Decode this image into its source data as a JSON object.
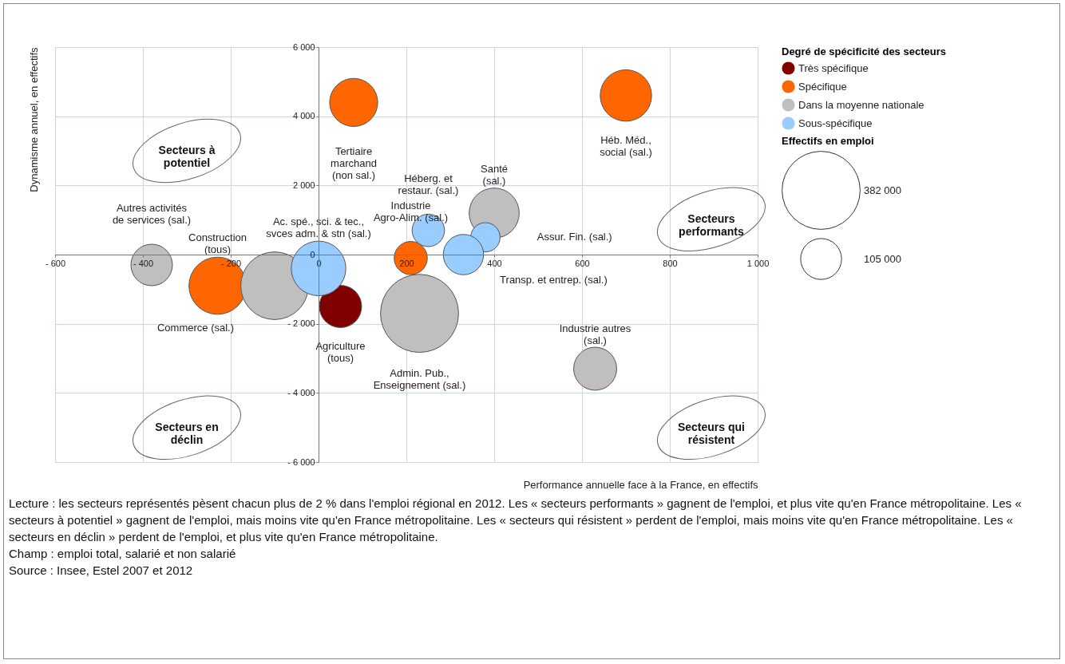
{
  "chart_data": {
    "type": "bubble",
    "xlabel": "Performance annuelle face à la France, en effectifs",
    "ylabel": "Dynamisme annuel, en effectifs",
    "legend_title": "Degré de spécificité des secteurs",
    "series": [
      {
        "name": "Très spécifique",
        "color": "#800000",
        "x": [
          50
        ],
        "values": [
          -1500
        ],
        "sizes": [
          112000
        ]
      },
      {
        "name": "Spécifique",
        "color": "#ff6600",
        "x": [
          -230,
          80,
          210,
          700
        ],
        "values": [
          -900,
          4400,
          -100,
          4600
        ],
        "sizes": [
          205000,
          145000,
          69000,
          166000
        ]
      },
      {
        "name": "Dans la moyenne nationale",
        "color": "#bfbfbf",
        "x": [
          -380,
          -100,
          230,
          400,
          630
        ],
        "values": [
          -300,
          -900,
          -1700,
          1200,
          -3300
        ],
        "sizes": [
          108000,
          287000,
          382000,
          157000,
          116000
        ]
      },
      {
        "name": "Sous-spécifique",
        "color": "#99ccff",
        "x": [
          0,
          250,
          380,
          330
        ],
        "values": [
          -400,
          700,
          500,
          0
        ],
        "sizes": [
          187000,
          66000,
          54000,
          102000
        ]
      }
    ],
    "size_legend": [
      {
        "value": 382000,
        "label": "382 000"
      },
      {
        "value": 105000,
        "label": "105 000"
      }
    ],
    "xlim": [
      -600,
      1000
    ],
    "xticks": [
      {
        "value": -600,
        "label": "- 600"
      },
      {
        "value": -400,
        "label": "- 400"
      },
      {
        "value": -200,
        "label": "- 200"
      },
      0,
      200,
      400,
      600,
      800,
      {
        "value": 1000,
        "label": "1 000"
      }
    ],
    "ylim": [
      -6000,
      6000
    ],
    "yticks": [
      {
        "value": -6000,
        "label": "- 6 000"
      },
      {
        "value": -4000,
        "label": "- 4 000"
      },
      {
        "value": -2000,
        "label": "- 2 000"
      },
      0,
      {
        "value": 2000,
        "label": "2 000"
      },
      {
        "value": 4000,
        "label": "4 000"
      },
      {
        "value": 6000,
        "label": "6 000"
      }
    ],
    "grid": true,
    "legend": "right",
    "annotations": [
      "Secteurs à\npotentiel",
      "Secteurs\nperformants",
      "Secteurs en\ndéclin",
      "Secteurs qui\nrésistent",
      "Effectifs en emploi",
      "Agriculture\n(tous)",
      "Construction\n(tous)",
      "Tertiaire\nmarchand\n(non sal.)",
      "Industrie\nAgro-Alim. (sal.)",
      "Héb. Méd.,\nsocial (sal.)",
      "Autres activités\nde services (sal.)",
      "Commerce (sal.)",
      "Admin. Pub.,\nEnseignement (sal.)",
      "Santé\n(sal.)",
      "Industrie autres\n(sal.)",
      "Ac. spé., sci. & tec.,\nsvces adm. & stn (sal.)",
      "Héberg. et\nrestaur. (sal.)",
      "Assur. Fin. (sal.)",
      "Transp. et entrep. (sal.)",
      "Lecture : les secteurs représentés pèsent chacun plus de 2 % dans l'emploi régional en 2012. Les « secteurs performants » gagnent de l'emploi, et plus vite qu'en France métropolitaine. Les « secteurs à potentiel » gagnent de l'emploi, mais moins vite qu'en France métropolitaine. Les « secteurs qui résistent » perdent de l'emploi, mais moins vite qu'en France métropolitaine. Les « secteurs en déclin » perdent de l'emploi, et plus vite qu'en France métropolitaine.",
      "Champ : emploi total, salarié et non salarié",
      "Source : Insee, Estel 2007 et 2012"
    ]
  }
}
